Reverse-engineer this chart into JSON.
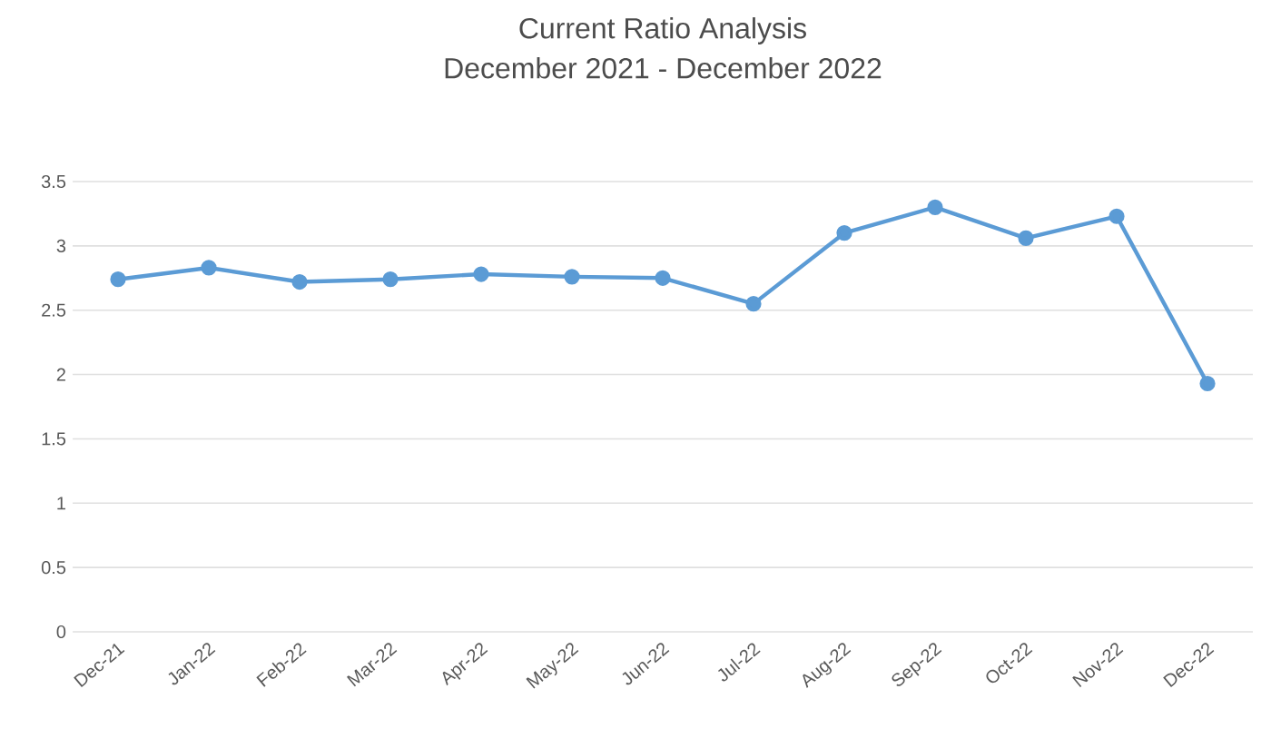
{
  "chart_data": {
    "type": "line",
    "title": "Current Ratio Analysis",
    "subtitle": "December 2021 - December 2022",
    "categories": [
      "Dec-21",
      "Jan-22",
      "Feb-22",
      "Mar-22",
      "Apr-22",
      "May-22",
      "Jun-22",
      "Jul-22",
      "Aug-22",
      "Sep-22",
      "Oct-22",
      "Nov-22",
      "Dec-22"
    ],
    "series": [
      {
        "color": "#5b9bd5",
        "values": [
          2.74,
          2.83,
          2.72,
          2.74,
          2.78,
          2.76,
          2.75,
          2.55,
          3.1,
          3.3,
          3.06,
          3.23,
          1.93
        ]
      }
    ],
    "ylim": [
      0,
      3.5
    ],
    "yticks": [
      0,
      0.5,
      1,
      1.5,
      2,
      2.5,
      3,
      3.5
    ],
    "grid": "y",
    "marker": "circle",
    "line_style": "solid"
  }
}
